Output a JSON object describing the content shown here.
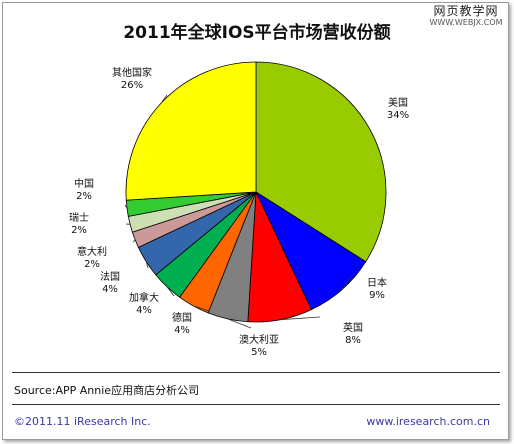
{
  "watermark": {
    "line1": "网页教学网",
    "line2": "WWW.WEBJX.COM"
  },
  "source": "Source:APP Annie应用商店分析公司",
  "footer": {
    "left": "©2011.11 iResearch Inc.",
    "right": "www.iresearch.com.cn"
  },
  "chart_data": {
    "type": "pie",
    "title": "2011年全球IOS平台市场营收份额",
    "slices": [
      {
        "label": "美国",
        "value": 34,
        "value_label": "34%",
        "color": "#99cc00"
      },
      {
        "label": "日本",
        "value": 9,
        "value_label": "9%",
        "color": "#0000ff"
      },
      {
        "label": "英国",
        "value": 8,
        "value_label": "8%",
        "color": "#ff0000"
      },
      {
        "label": "澳大利亚",
        "value": 5,
        "value_label": "5%",
        "color": "#808080"
      },
      {
        "label": "德国",
        "value": 4,
        "value_label": "4%",
        "color": "#ff6600"
      },
      {
        "label": "加拿大",
        "value": 4,
        "value_label": "4%",
        "color": "#00b050"
      },
      {
        "label": "法国",
        "value": 4,
        "value_label": "4%",
        "color": "#3366aa"
      },
      {
        "label": "意大利",
        "value": 2,
        "value_label": "2%",
        "color": "#cc9999"
      },
      {
        "label": "瑞士",
        "value": 2,
        "value_label": "2%",
        "color": "#cce0b3"
      },
      {
        "label": "中国",
        "value": 2,
        "value_label": "2%",
        "color": "#33cc33"
      },
      {
        "label": "其他国家",
        "value": 26,
        "value_label": "26%",
        "color": "#ffff00"
      }
    ],
    "start": "12 o'clock",
    "direction": "clockwise",
    "legend": "none (labels beside slices)"
  }
}
